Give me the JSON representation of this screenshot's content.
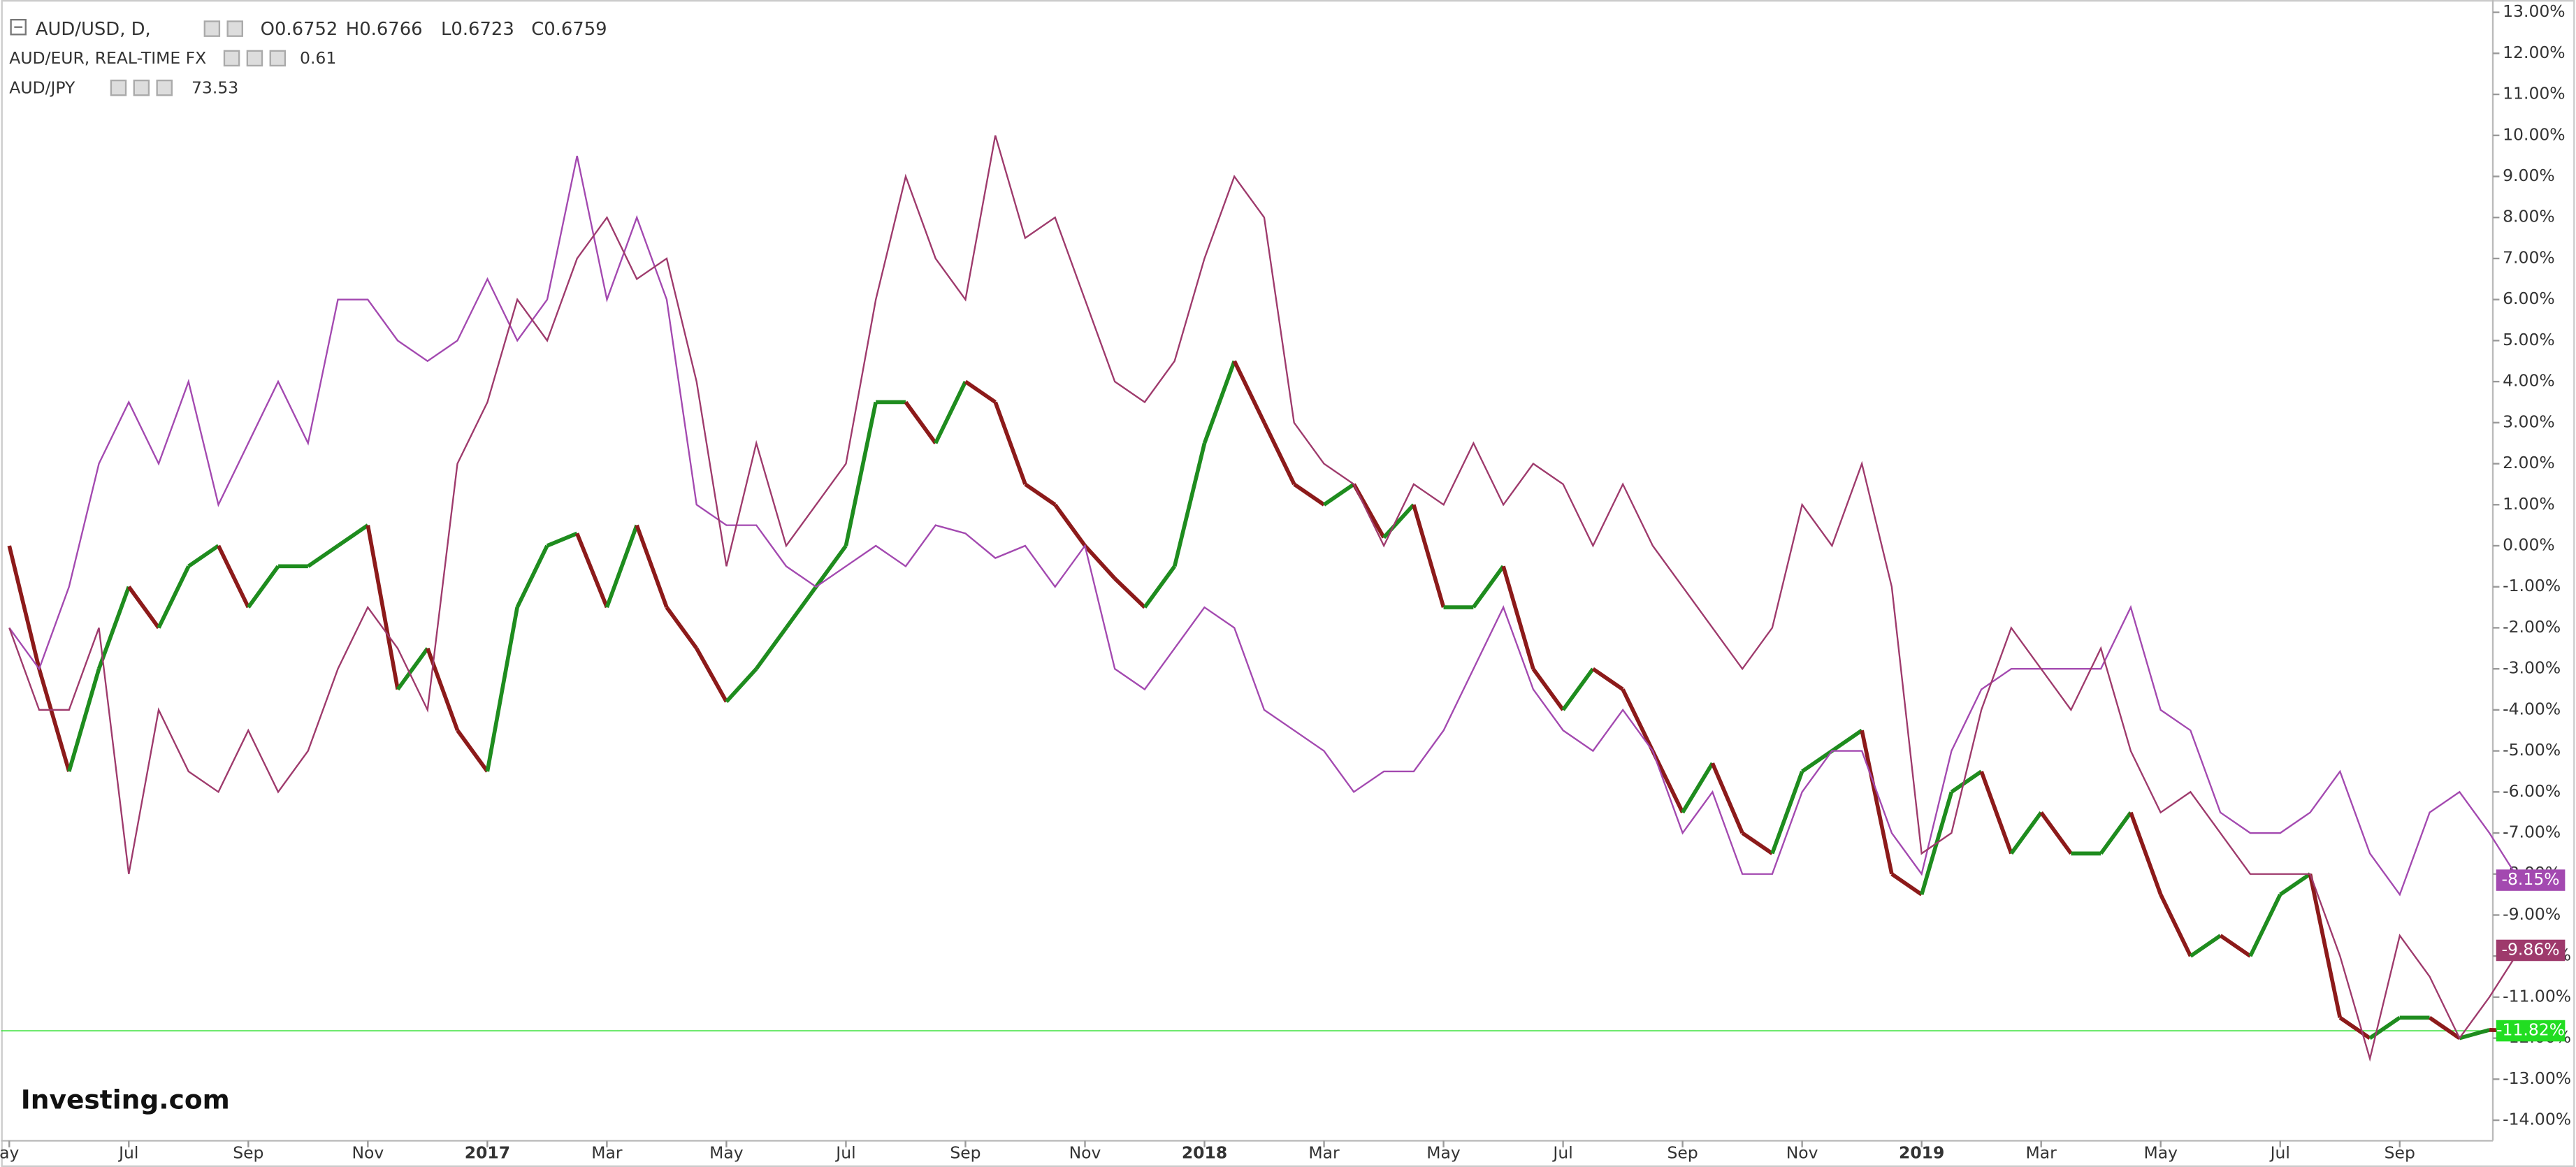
{
  "chart_data": {
    "type": "line",
    "header": {
      "symbol": "AUD/USD, D,",
      "open": "O0.6752",
      "high": "H0.6766",
      "low": "L0.6723",
      "close": "C0.6759"
    },
    "logo": "Investing.com",
    "series": [
      {
        "name": "AUD/USD",
        "kind": "candle",
        "color": "#1e8c1e",
        "down_color": "#8c1a1a",
        "last_label": "-11.82%",
        "last_color": "#22dd22",
        "values": [
          0,
          -3,
          -5.5,
          -3,
          -1,
          -2,
          -0.5,
          0,
          -1.5,
          -0.5,
          -0.5,
          0,
          0.5,
          -3.5,
          -2.5,
          -4.5,
          -5.5,
          -1.5,
          0,
          0.3,
          -1.5,
          0.5,
          -1.5,
          -2.5,
          -3.8,
          -3,
          -2,
          -1,
          0,
          3.5,
          3.5,
          2.5,
          4,
          3.5,
          1.5,
          1,
          0,
          -0.8,
          -1.5,
          -0.5,
          2.5,
          4.5,
          3,
          1.5,
          1,
          1.5,
          0.2,
          1,
          -1.5,
          -1.5,
          -0.5,
          -3,
          -4,
          -3,
          -3.5,
          -5,
          -6.5,
          -5.3,
          -7,
          -7.5,
          -5.5,
          -5,
          -4.5,
          -8,
          -8.5,
          -6,
          -5.5,
          -7.5,
          -6.5,
          -7.5,
          -7.5,
          -6.5,
          -8.5,
          -10,
          -9.5,
          -10,
          -8.5,
          -8,
          -11.5,
          -12,
          -11.5,
          -11.5,
          -12,
          -11.8,
          -11.82
        ]
      },
      {
        "name": "AUD/EUR, REAL-TIME FX",
        "quote": "0.61",
        "color": "#a349b0",
        "last_label": "-8.15%",
        "values": [
          -2,
          -3,
          -1,
          2,
          3.5,
          2,
          4,
          1,
          2.5,
          4,
          2.5,
          6,
          6,
          5,
          4.5,
          5,
          6.5,
          5,
          6,
          9.5,
          6,
          8,
          6,
          1,
          0.5,
          0.5,
          -0.5,
          -1,
          -0.5,
          0,
          -0.5,
          0.5,
          0.3,
          -0.3,
          0,
          -1,
          0,
          -3,
          -3.5,
          -2.5,
          -1.5,
          -2,
          -4,
          -4.5,
          -5,
          -6,
          -5.5,
          -5.5,
          -4.5,
          -3,
          -1.5,
          -3.5,
          -4.5,
          -5,
          -4,
          -5,
          -7,
          -6,
          -8,
          -8,
          -6,
          -5,
          -5,
          -7,
          -8,
          -5,
          -3.5,
          -3,
          -3,
          -3,
          -3,
          -1.5,
          -4,
          -4.5,
          -6.5,
          -7,
          -7,
          -6.5,
          -5.5,
          -7.5,
          -8.5,
          -6.5,
          -6,
          -7,
          -8.15
        ]
      },
      {
        "name": "AUD/JPY",
        "quote": "73.53",
        "color": "#9e3a6c",
        "last_label": "-9.86%",
        "values": [
          -2,
          -4,
          -4,
          -2,
          -8,
          -4,
          -5.5,
          -6,
          -4.5,
          -6,
          -5,
          -3,
          -1.5,
          -2.5,
          -4,
          2,
          3.5,
          6,
          5,
          7,
          8,
          6.5,
          7,
          4,
          -0.5,
          2.5,
          0,
          1,
          2,
          6,
          9,
          7,
          6,
          10,
          7.5,
          8,
          6,
          4,
          3.5,
          4.5,
          7,
          9,
          8,
          3,
          2,
          1.5,
          0,
          1.5,
          1,
          2.5,
          1,
          2,
          1.5,
          0,
          1.5,
          0,
          -1,
          -2,
          -3,
          -2,
          1,
          0,
          2,
          -1,
          -7.5,
          -7,
          -4,
          -2,
          -3,
          -4,
          -2.5,
          -5,
          -6.5,
          -6,
          -7,
          -8,
          -8,
          -8,
          -10,
          -12.5,
          -9.5,
          -10.5,
          -12,
          -11,
          -9.86
        ]
      }
    ],
    "xlim": [
      0,
      84.6
    ],
    "xticks": [
      {
        "value": 0,
        "label": "ay"
      },
      {
        "value": 4,
        "label": "Jul"
      },
      {
        "value": 8,
        "label": "Sep"
      },
      {
        "value": 12,
        "label": "Nov"
      },
      {
        "value": 16,
        "label": "2017"
      },
      {
        "value": 20,
        "label": "Mar"
      },
      {
        "value": 24,
        "label": "May"
      },
      {
        "value": 28,
        "label": "Jul"
      },
      {
        "value": 32,
        "label": "Sep"
      },
      {
        "value": 36,
        "label": "Nov"
      },
      {
        "value": 40,
        "label": "2018"
      },
      {
        "value": 44,
        "label": "Mar"
      },
      {
        "value": 48,
        "label": "May"
      },
      {
        "value": 52,
        "label": "Jul"
      },
      {
        "value": 56,
        "label": "Sep"
      },
      {
        "value": 60,
        "label": "Nov"
      },
      {
        "value": 64,
        "label": "2019"
      },
      {
        "value": 68,
        "label": "Mar"
      },
      {
        "value": 72,
        "label": "May"
      },
      {
        "value": 76,
        "label": "Jul"
      },
      {
        "value": 80,
        "label": "Sep"
      }
    ],
    "ylim": [
      -14.5,
      13.3
    ],
    "yticks": [
      {
        "value": -14,
        "label": "-14.00%"
      },
      {
        "value": -13,
        "label": "-13.00%"
      },
      {
        "value": -12,
        "label": "-12.00%"
      },
      {
        "value": -11,
        "label": "-11.00%"
      },
      {
        "value": -10,
        "label": "-10.00%"
      },
      {
        "value": -9,
        "label": "-9.00%"
      },
      {
        "value": -8,
        "label": "-8.00%"
      },
      {
        "value": -7,
        "label": "-7.00%"
      },
      {
        "value": -6,
        "label": "-6.00%"
      },
      {
        "value": -5,
        "label": "-5.00%"
      },
      {
        "value": -4,
        "label": "-4.00%"
      },
      {
        "value": -3,
        "label": "-3.00%"
      },
      {
        "value": -2,
        "label": "-2.00%"
      },
      {
        "value": -1,
        "label": "-1.00%"
      },
      {
        "value": 0,
        "label": "0.00%"
      },
      {
        "value": 1,
        "label": "1.00%"
      },
      {
        "value": 2,
        "label": "2.00%"
      },
      {
        "value": 3,
        "label": "3.00%"
      },
      {
        "value": 4,
        "label": "4.00%"
      },
      {
        "value": 5,
        "label": "5.00%"
      },
      {
        "value": 6,
        "label": "6.00%"
      },
      {
        "value": 7,
        "label": "7.00%"
      },
      {
        "value": 8,
        "label": "8.00%"
      },
      {
        "value": 9,
        "label": "9.00%"
      },
      {
        "value": 10,
        "label": "10.00%"
      },
      {
        "value": 11,
        "label": "11.00%"
      },
      {
        "value": 12,
        "label": "12.00%"
      },
      {
        "value": 13,
        "label": "13.00%"
      }
    ],
    "grid": false
  }
}
